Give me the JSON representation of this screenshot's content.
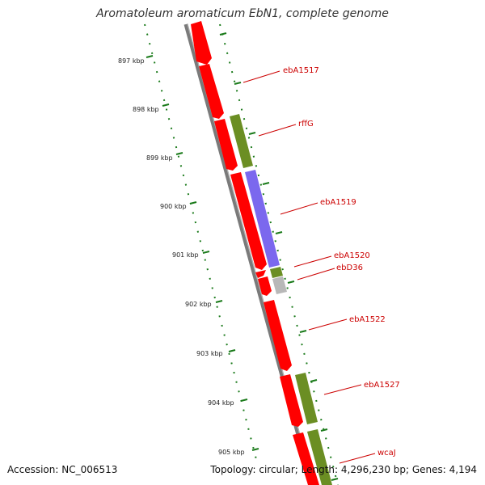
{
  "title": "Aromatoleum aromaticum EbN1, complete genome",
  "accession_text": "Accession: NC_006513",
  "summary_text": "Topology: circular; Length: 4,296,230 bp; Genes: 4,194",
  "colors": {
    "backbone": "#808080",
    "forward_cds": "#ff0000",
    "rna_green": "#6b8e23",
    "purple_feature": "#7b68ee",
    "gray_feature": "#b8b8b8",
    "dots": "#1a7a1a",
    "label": "#cc0000"
  },
  "tick_labels": [
    "897 kbp",
    "898 kbp",
    "899 kbp",
    "900 kbp",
    "901 kbp",
    "902 kbp",
    "903 kbp",
    "904 kbp",
    "905 kbp"
  ],
  "gene_labels": [
    "ebA1517",
    "rffG",
    "ebA1519",
    "ebA1520",
    "ebD36",
    "ebA1522",
    "ebA1527",
    "wcaJ"
  ]
}
